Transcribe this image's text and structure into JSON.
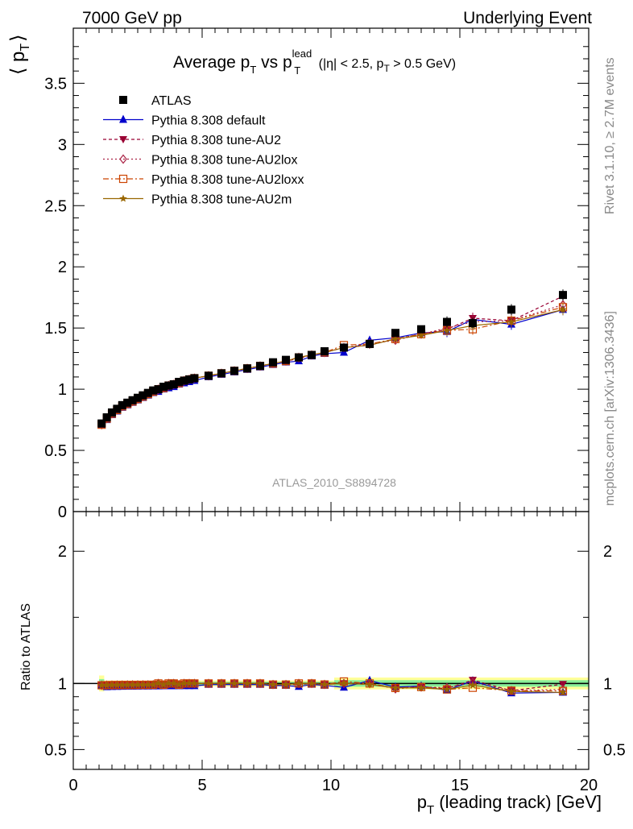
{
  "header": {
    "left": "7000 GeV pp",
    "right": "Underlying Event"
  },
  "side_labels": {
    "rivet": "Rivet 3.1.10, ≥ 2.7M events",
    "mcplots": "mcplots.cern.ch [arXiv:1306.3436]"
  },
  "watermark": "ATLAS_2010_S8894728",
  "title": {
    "main": "Average p",
    "sub1": "T",
    "mid": " vs p",
    "sup2": "lead",
    "sub2": "T",
    "cut_a": " (|η| < 2.5, p",
    "cut_sub": "T",
    "cut_b": " > 0.5 GeV)"
  },
  "y_label": {
    "open": "⟨ p",
    "sub": "T",
    "close": "⟩"
  },
  "x_label": {
    "p": "p",
    "sub": "T",
    "rest": " (leading track) [GeV]"
  },
  "ratio_label": "Ratio to ATLAS",
  "colors": {
    "atlas": "#000000",
    "default": "#0000cc",
    "au2": "#990033",
    "au2lox": "#aa2244",
    "au2loxx": "#cc4400",
    "au2m": "#996600",
    "band_green": "#88ee99",
    "band_yellow": "#ffff99"
  },
  "chart_data": {
    "type": "scatter",
    "xlim": [
      0,
      20
    ],
    "ylim": [
      0,
      3.95
    ],
    "ratio_ylim": [
      0.35,
      2.3
    ],
    "x_ticks": [
      "0",
      "5",
      "10",
      "15",
      "20"
    ],
    "y_ticks": [
      "0",
      "0.5",
      "1",
      "1.5",
      "2",
      "2.5",
      "3",
      "3.5"
    ],
    "ratio_ticks": [
      "0.5",
      "1",
      "2"
    ],
    "x": [
      1.1,
      1.3,
      1.5,
      1.7,
      1.9,
      2.1,
      2.3,
      2.5,
      2.7,
      2.9,
      3.1,
      3.3,
      3.5,
      3.7,
      3.9,
      4.1,
      4.3,
      4.5,
      4.7,
      5.25,
      5.75,
      6.25,
      6.75,
      7.25,
      7.75,
      8.25,
      8.75,
      9.25,
      9.75,
      10.5,
      11.5,
      12.5,
      13.5,
      14.5,
      15.5,
      17.0,
      19.0
    ],
    "series": [
      {
        "name": "ATLAS",
        "key": "atlas",
        "values": [
          0.72,
          0.77,
          0.81,
          0.84,
          0.87,
          0.89,
          0.91,
          0.93,
          0.95,
          0.97,
          0.99,
          1.0,
          1.02,
          1.03,
          1.04,
          1.06,
          1.07,
          1.08,
          1.09,
          1.11,
          1.13,
          1.15,
          1.17,
          1.19,
          1.22,
          1.24,
          1.26,
          1.28,
          1.31,
          1.34,
          1.37,
          1.46,
          1.49,
          1.55,
          1.54,
          1.65,
          1.77
        ]
      },
      {
        "name": "Pythia 8.308 default",
        "key": "default",
        "values": [
          0.71,
          0.75,
          0.79,
          0.82,
          0.85,
          0.87,
          0.89,
          0.91,
          0.93,
          0.95,
          0.97,
          0.98,
          1.0,
          1.01,
          1.02,
          1.04,
          1.05,
          1.06,
          1.07,
          1.1,
          1.12,
          1.14,
          1.16,
          1.18,
          1.2,
          1.22,
          1.23,
          1.27,
          1.29,
          1.3,
          1.4,
          1.42,
          1.46,
          1.47,
          1.57,
          1.53,
          1.65
        ]
      },
      {
        "name": "Pythia 8.308 tune-AU2",
        "key": "au2",
        "values": [
          0.71,
          0.76,
          0.8,
          0.83,
          0.86,
          0.88,
          0.9,
          0.92,
          0.94,
          0.96,
          0.98,
          0.99,
          1.01,
          1.02,
          1.04,
          1.05,
          1.06,
          1.08,
          1.09,
          1.11,
          1.13,
          1.15,
          1.17,
          1.19,
          1.21,
          1.23,
          1.25,
          1.28,
          1.3,
          1.34,
          1.36,
          1.41,
          1.45,
          1.49,
          1.58,
          1.56,
          1.76
        ]
      },
      {
        "name": "Pythia 8.308 tune-AU2lox",
        "key": "au2lox",
        "values": [
          0.71,
          0.76,
          0.8,
          0.83,
          0.86,
          0.88,
          0.9,
          0.92,
          0.94,
          0.96,
          0.98,
          1.0,
          1.01,
          1.03,
          1.04,
          1.05,
          1.07,
          1.08,
          1.09,
          1.11,
          1.13,
          1.15,
          1.17,
          1.19,
          1.21,
          1.23,
          1.26,
          1.28,
          1.3,
          1.34,
          1.37,
          1.4,
          1.45,
          1.5,
          1.55,
          1.56,
          1.69
        ]
      },
      {
        "name": "Pythia 8.308 tune-AU2loxx",
        "key": "au2loxx",
        "values": [
          0.71,
          0.76,
          0.8,
          0.83,
          0.86,
          0.88,
          0.9,
          0.92,
          0.94,
          0.96,
          0.98,
          1.0,
          1.01,
          1.03,
          1.04,
          1.05,
          1.07,
          1.08,
          1.09,
          1.11,
          1.13,
          1.15,
          1.17,
          1.19,
          1.21,
          1.23,
          1.26,
          1.28,
          1.3,
          1.36,
          1.37,
          1.41,
          1.45,
          1.48,
          1.49,
          1.56,
          1.67
        ]
      },
      {
        "name": "Pythia 8.308 tune-AU2m",
        "key": "au2m",
        "values": [
          0.71,
          0.76,
          0.8,
          0.83,
          0.86,
          0.88,
          0.9,
          0.92,
          0.94,
          0.96,
          0.98,
          1.0,
          1.01,
          1.03,
          1.04,
          1.05,
          1.07,
          1.08,
          1.09,
          1.11,
          1.13,
          1.15,
          1.17,
          1.19,
          1.21,
          1.23,
          1.26,
          1.28,
          1.3,
          1.34,
          1.36,
          1.41,
          1.44,
          1.48,
          1.52,
          1.55,
          1.65
        ]
      }
    ]
  }
}
